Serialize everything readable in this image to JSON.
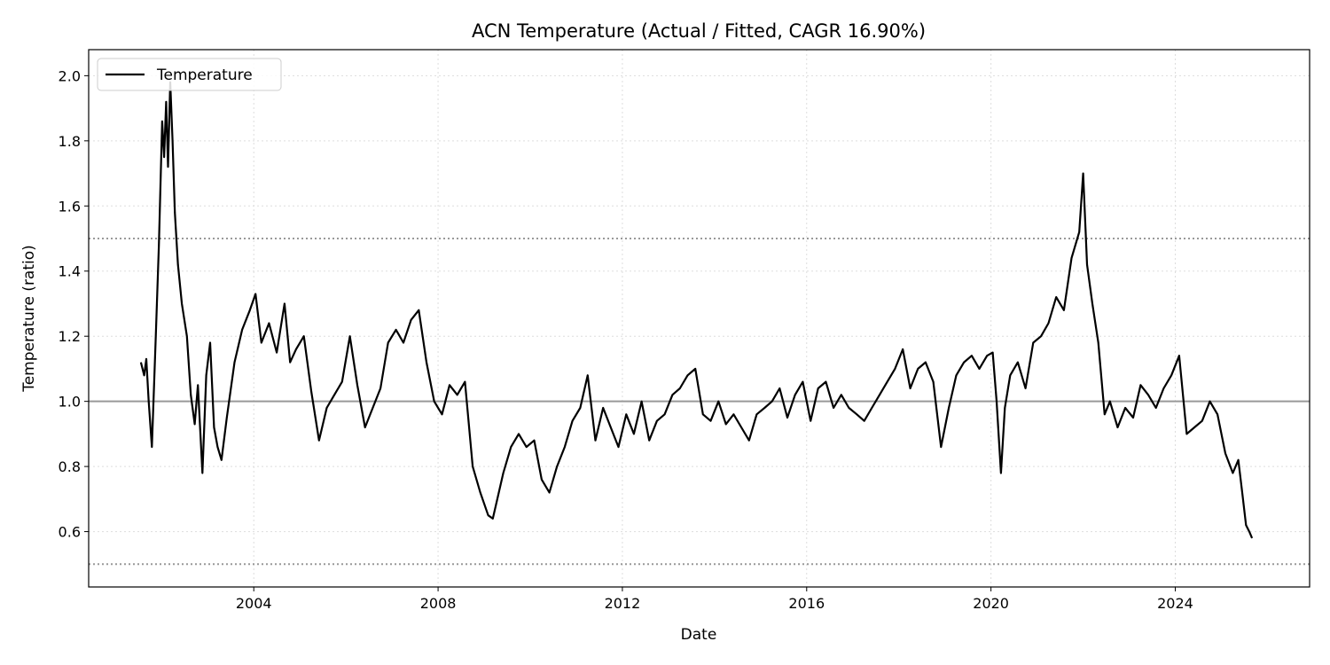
{
  "chart_data": {
    "type": "line",
    "title": "ACN Temperature (Actual / Fitted, CAGR 16.90%)",
    "xlabel": "Date",
    "ylabel": "Temperature (ratio)",
    "xlim": [
      "2000-06-01",
      "2026-12-01"
    ],
    "ylim": [
      0.43,
      2.08
    ],
    "xticks": [
      {
        "date": "2004-01-01",
        "label": "2004"
      },
      {
        "date": "2008-01-01",
        "label": "2008"
      },
      {
        "date": "2012-01-01",
        "label": "2012"
      },
      {
        "date": "2016-01-01",
        "label": "2016"
      },
      {
        "date": "2020-01-01",
        "label": "2020"
      },
      {
        "date": "2024-01-01",
        "label": "2024"
      }
    ],
    "yticks": [
      {
        "value": 0.6,
        "label": "0.6"
      },
      {
        "value": 0.8,
        "label": "0.8"
      },
      {
        "value": 1.0,
        "label": "1.0"
      },
      {
        "value": 1.2,
        "label": "1.2"
      },
      {
        "value": 1.4,
        "label": "1.4"
      },
      {
        "value": 1.6,
        "label": "1.6"
      },
      {
        "value": 1.8,
        "label": "1.8"
      },
      {
        "value": 2.0,
        "label": "2.0"
      }
    ],
    "grid": true,
    "legend": {
      "placement": "top-left",
      "entries": [
        "Temperature"
      ]
    },
    "reference_lines": [
      {
        "value": 1.0,
        "style": "solid",
        "color": "#999999"
      },
      {
        "value": 1.5,
        "style": "dotted",
        "color": "#999999"
      },
      {
        "value": 0.5,
        "style": "dotted",
        "color": "#999999"
      }
    ],
    "series": [
      {
        "name": "Temperature",
        "color": "#000000",
        "x": [
          "2001-07-20",
          "2001-08-15",
          "2001-09-01",
          "2001-09-20",
          "2001-10-15",
          "2001-11-15",
          "2001-12-10",
          "2002-01-05",
          "2002-01-20",
          "2002-02-05",
          "2002-02-20",
          "2002-03-10",
          "2002-03-28",
          "2002-04-15",
          "2002-05-10",
          "2002-06-10",
          "2002-07-20",
          "2002-08-20",
          "2002-09-20",
          "2002-10-15",
          "2002-11-20",
          "2002-12-20",
          "2003-01-20",
          "2003-02-20",
          "2003-03-20",
          "2003-04-20",
          "2003-06-01",
          "2003-08-01",
          "2003-10-01",
          "2003-12-01",
          "2004-01-15",
          "2004-03-01",
          "2004-05-01",
          "2004-07-01",
          "2004-09-01",
          "2004-10-15",
          "2004-12-01",
          "2005-02-01",
          "2005-04-01",
          "2005-06-01",
          "2005-08-01",
          "2005-10-01",
          "2005-12-01",
          "2006-02-01",
          "2006-04-01",
          "2006-06-01",
          "2006-08-01",
          "2006-10-01",
          "2006-12-01",
          "2007-02-01",
          "2007-04-01",
          "2007-06-01",
          "2007-08-01",
          "2007-10-01",
          "2007-12-01",
          "2008-02-01",
          "2008-04-01",
          "2008-06-01",
          "2008-08-01",
          "2008-10-01",
          "2008-12-01",
          "2009-02-01",
          "2009-03-10",
          "2009-04-15",
          "2009-06-01",
          "2009-08-01",
          "2009-10-01",
          "2009-12-01",
          "2010-02-01",
          "2010-04-01",
          "2010-06-01",
          "2010-08-01",
          "2010-10-01",
          "2010-12-01",
          "2011-02-01",
          "2011-04-01",
          "2011-06-01",
          "2011-08-01",
          "2011-10-01",
          "2011-12-01",
          "2012-02-01",
          "2012-04-01",
          "2012-06-01",
          "2012-08-01",
          "2012-10-01",
          "2012-12-01",
          "2013-02-01",
          "2013-04-01",
          "2013-06-01",
          "2013-08-01",
          "2013-10-01",
          "2013-12-01",
          "2014-02-01",
          "2014-04-01",
          "2014-06-01",
          "2014-08-01",
          "2014-10-01",
          "2014-12-01",
          "2015-02-01",
          "2015-04-01",
          "2015-06-01",
          "2015-08-01",
          "2015-10-01",
          "2015-12-01",
          "2016-02-01",
          "2016-04-01",
          "2016-06-01",
          "2016-08-01",
          "2016-10-01",
          "2016-12-01",
          "2017-02-01",
          "2017-04-01",
          "2017-06-01",
          "2017-08-01",
          "2017-10-01",
          "2017-12-01",
          "2018-02-01",
          "2018-04-01",
          "2018-06-01",
          "2018-08-01",
          "2018-10-01",
          "2018-12-01",
          "2019-02-01",
          "2019-04-01",
          "2019-06-01",
          "2019-08-01",
          "2019-10-01",
          "2019-12-01",
          "2020-01-15",
          "2020-02-15",
          "2020-03-20",
          "2020-04-20",
          "2020-06-01",
          "2020-08-01",
          "2020-10-01",
          "2020-12-01",
          "2021-02-01",
          "2021-04-01",
          "2021-06-01",
          "2021-08-01",
          "2021-10-01",
          "2021-12-01",
          "2022-01-01",
          "2022-02-01",
          "2022-03-15",
          "2022-05-01",
          "2022-06-20",
          "2022-08-01",
          "2022-10-01",
          "2022-12-01",
          "2023-02-01",
          "2023-04-01",
          "2023-06-01",
          "2023-08-01",
          "2023-10-01",
          "2023-12-01",
          "2024-02-01",
          "2024-04-01",
          "2024-06-01",
          "2024-08-01",
          "2024-10-01",
          "2024-12-01",
          "2025-02-01",
          "2025-04-01",
          "2025-05-15",
          "2025-06-15",
          "2025-07-15",
          "2025-08-10",
          "2025-09-01"
        ],
        "y": [
          1.12,
          1.08,
          1.13,
          1.0,
          0.86,
          1.2,
          1.48,
          1.86,
          1.75,
          1.92,
          1.72,
          1.98,
          1.8,
          1.58,
          1.42,
          1.3,
          1.2,
          1.02,
          0.93,
          1.05,
          0.78,
          1.08,
          1.18,
          0.92,
          0.86,
          0.82,
          0.95,
          1.12,
          1.22,
          1.28,
          1.33,
          1.18,
          1.24,
          1.15,
          1.3,
          1.12,
          1.16,
          1.2,
          1.03,
          0.88,
          0.98,
          1.02,
          1.06,
          1.2,
          1.05,
          0.92,
          0.98,
          1.04,
          1.18,
          1.22,
          1.18,
          1.25,
          1.28,
          1.12,
          1.0,
          0.96,
          1.05,
          1.02,
          1.06,
          0.8,
          0.72,
          0.65,
          0.64,
          0.7,
          0.78,
          0.86,
          0.9,
          0.86,
          0.88,
          0.76,
          0.72,
          0.8,
          0.86,
          0.94,
          0.98,
          1.08,
          0.88,
          0.98,
          0.92,
          0.86,
          0.96,
          0.9,
          1.0,
          0.88,
          0.94,
          0.96,
          1.02,
          1.04,
          1.08,
          1.1,
          0.96,
          0.94,
          1.0,
          0.93,
          0.96,
          0.92,
          0.88,
          0.96,
          0.98,
          1.0,
          1.04,
          0.95,
          1.02,
          1.06,
          0.94,
          1.04,
          1.06,
          0.98,
          1.02,
          0.98,
          0.96,
          0.94,
          0.98,
          1.02,
          1.06,
          1.1,
          1.16,
          1.04,
          1.1,
          1.12,
          1.06,
          0.86,
          0.98,
          1.08,
          1.12,
          1.14,
          1.1,
          1.14,
          1.15,
          1.0,
          0.78,
          0.98,
          1.08,
          1.12,
          1.04,
          1.18,
          1.2,
          1.24,
          1.32,
          1.28,
          1.44,
          1.52,
          1.7,
          1.42,
          1.3,
          1.18,
          0.96,
          1.0,
          0.92,
          0.98,
          0.95,
          1.05,
          1.02,
          0.98,
          1.04,
          1.08,
          1.14,
          0.9,
          0.92,
          0.94,
          1.0,
          0.96,
          0.84,
          0.78,
          0.82,
          0.72,
          0.62,
          0.6,
          0.58
        ]
      }
    ]
  }
}
